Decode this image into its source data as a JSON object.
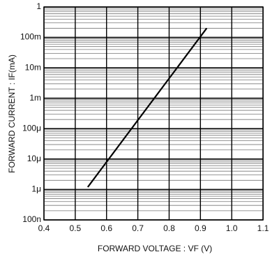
{
  "chart_data": {
    "type": "line",
    "x_label": "FORWARD VOLTAGE : VF (V)",
    "y_label": "FORWARD CURRENT : IF(mA)",
    "x": [
      0.54,
      0.92
    ],
    "values": [
      1.2e-06,
      0.2
    ],
    "color": "#000000",
    "xlim": [
      0.4,
      1.1
    ],
    "xticks": [
      0.4,
      0.5,
      0.6,
      0.7,
      0.8,
      0.9,
      {
        "value": 1,
        "label": "1.0"
      },
      1.1
    ],
    "ylim": [
      1e-07,
      1
    ],
    "yticks": [
      1,
      {
        "value": 0.1,
        "label": "100m"
      },
      {
        "value": 0.01,
        "label": "10m"
      },
      {
        "value": 0.001,
        "label": "1m"
      },
      {
        "value": 0.0001,
        "label": "100μ"
      },
      {
        "value": 1e-05,
        "label": "10μ"
      },
      {
        "value": 1e-06,
        "label": "1μ"
      },
      {
        "value": 1e-07,
        "label": "100n"
      }
    ],
    "y_scale": "log",
    "grid": true
  }
}
